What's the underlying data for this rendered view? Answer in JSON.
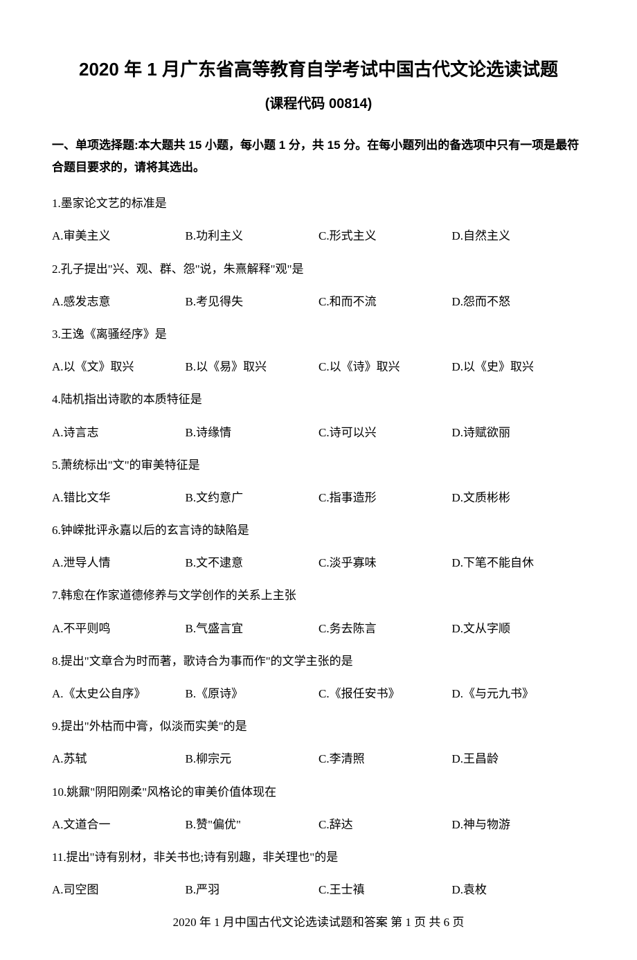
{
  "title": "2020 年 1 月广东省高等教育自学考试中国古代文论选读试题",
  "subtitle": "(课程代码 00814)",
  "section_header": "一、单项选择题:本大题共 15 小题，每小题 1 分，共 15 分。在每小题列出的备选项中只有一项是最符合题目要求的，请将其选出。",
  "questions": [
    {
      "text": "1.墨家论文艺的标准是",
      "options": [
        "A.审美主义",
        "B.功利主义",
        "C.形式主义",
        "D.自然主义"
      ]
    },
    {
      "text": "2.孔子提出\"兴、观、群、怨\"说，朱熹解释\"观\"是",
      "options": [
        "A.感发志意",
        "B.考见得失",
        "C.和而不流",
        "D.怨而不怒"
      ]
    },
    {
      "text": "3.王逸《离骚经序》是",
      "options": [
        "A.以《文》取兴",
        "B.以《易》取兴",
        "C.以《诗》取兴",
        "D.以《史》取兴"
      ]
    },
    {
      "text": "4.陆机指出诗歌的本质特征是",
      "options": [
        "A.诗言志",
        "B.诗缘情",
        "C.诗可以兴",
        "D.诗赋欲丽"
      ]
    },
    {
      "text": "5.萧统标出\"文\"的审美特征是",
      "options": [
        "A.错比文华",
        "B.文约意广",
        "C.指事造形",
        "D.文质彬彬"
      ]
    },
    {
      "text": "6.钟嵘批评永嘉以后的玄言诗的缺陷是",
      "options": [
        "A.泄导人情",
        "B.文不逮意",
        "C.淡乎寡味",
        "D.下笔不能自休"
      ]
    },
    {
      "text": "7.韩愈在作家道德修养与文学创作的关系上主张",
      "options": [
        "A.不平则鸣",
        "B.气盛言宜",
        "C.务去陈言",
        "D.文从字顺"
      ]
    },
    {
      "text": "8.提出\"文章合为时而著，歌诗合为事而作\"的文学主张的是",
      "options": [
        "A.《太史公自序》",
        "B.《原诗》",
        "C.《报任安书》",
        "D.《与元九书》"
      ]
    },
    {
      "text": "9.提出\"外枯而中膏，似淡而实美\"的是",
      "options": [
        "A.苏轼",
        "B.柳宗元",
        "C.李清照",
        "D.王昌龄"
      ]
    },
    {
      "text": "10.姚鼐\"阴阳刚柔\"风格论的审美价值体现在",
      "options": [
        "A.文道合一",
        "B.赞\"偏优\"",
        "C.辞达",
        "D.神与物游"
      ]
    },
    {
      "text": "11.提出\"诗有别材，非关书也;诗有别趣，非关理也\"的是",
      "options": [
        "A.司空图",
        "B.严羽",
        "C.王士禛",
        "D.袁枚"
      ]
    }
  ],
  "footer": "2020 年 1 月中国古代文论选读试题和答案 第 1 页 共 6 页"
}
